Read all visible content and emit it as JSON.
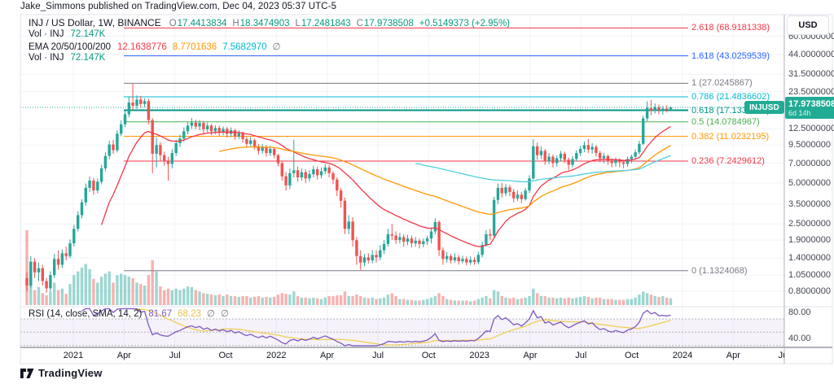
{
  "header": {
    "attribution": "Jake_Simmons published on TradingView.com, Dec 04, 2023 05:37 UTC-5"
  },
  "legend": {
    "symbol_title": "INJ / US Dollar, 1W, BINANCE",
    "ohlc": {
      "o_label": "O",
      "o": "17.4413834",
      "h_label": "H",
      "h": "18.3474903",
      "l_label": "L",
      "l": "17.2481843",
      "c_label": "C",
      "c": "17.9738508",
      "change": "+0.5149373 (+2.95%)"
    },
    "vol_row": {
      "label": "Vol · INJ",
      "value": "72.147K"
    },
    "ema_row": {
      "label": "EMA 20/50/100/200",
      "v1": "12.1638776",
      "v2": "8.7701636",
      "v3": "7.5682970",
      "v4": "∅"
    },
    "vol_row2": {
      "label": "Vol · INJ",
      "value": "72.147K"
    }
  },
  "rsi_legend": {
    "label": "RSI (14, close, SMA, 14, 2)",
    "v1": "81.67",
    "v2": "68.23",
    "v3": "∅",
    "v4": "∅"
  },
  "price_badge": {
    "symbol_label": "INJUSD",
    "price": "17.9738508",
    "countdown": "6d 14h"
  },
  "axis": {
    "currency_button": "USD",
    "price_ticks": [
      {
        "value": 60,
        "label": "60.0000000"
      },
      {
        "value": 44,
        "label": "44.0000000"
      },
      {
        "value": 31.5,
        "label": "31.5000000"
      },
      {
        "value": 23.5,
        "label": "23.5000000"
      },
      {
        "value": 12.5,
        "label": "12.5000000"
      },
      {
        "value": 9.5,
        "label": "9.5000000"
      },
      {
        "value": 7,
        "label": "7.0000000"
      },
      {
        "value": 5,
        "label": "5.0000000"
      },
      {
        "value": 3.5,
        "label": "3.5000000"
      },
      {
        "value": 2.5,
        "label": "2.5000000"
      },
      {
        "value": 1.9,
        "label": "1.9000000"
      },
      {
        "value": 1.4,
        "label": "1.4000000"
      },
      {
        "value": 1.05,
        "label": "1.0500000"
      },
      {
        "value": 0.8,
        "label": "0.8000000"
      }
    ],
    "rsi_ticks": [
      {
        "value": 80,
        "label": "80.00"
      },
      {
        "value": 40,
        "label": "40.00"
      }
    ],
    "time_labels": [
      "2021",
      "Apr",
      "Jul",
      "Oct",
      "2022",
      "Apr",
      "Jul",
      "Oct",
      "2023",
      "Apr",
      "Jul",
      "Oct",
      "2024",
      "Apr",
      "Jul"
    ]
  },
  "fib_levels": [
    {
      "ratio": "2.618",
      "value": 68.9181338,
      "label": "2.618 (68.9181338)",
      "color": "#f23645",
      "width": 1
    },
    {
      "ratio": "1.618",
      "value": 43.0259539,
      "label": "1.618 (43.0259539)",
      "color": "#2962ff",
      "width": 1
    },
    {
      "ratio": "1",
      "value": 27.0245867,
      "label": "1 (27.0245867)",
      "color": "#787b86",
      "width": 1
    },
    {
      "ratio": "0.786",
      "value": 21.4836602,
      "label": "0.786 (21.4836602)",
      "color": "#00bcd4",
      "width": 1
    },
    {
      "ratio": "0.618",
      "value": 17.133774,
      "label": "0.618 (17.1337740)",
      "color": "#009688",
      "width": 2
    },
    {
      "ratio": "0.5",
      "value": 14.0784967,
      "label": "0.5 (14.0784967)",
      "color": "#4caf50",
      "width": 1
    },
    {
      "ratio": "0.382",
      "value": 11.0232195,
      "label": "0.382 (11.0232195)",
      "color": "#ff9800",
      "width": 1
    },
    {
      "ratio": "0.236",
      "value": 7.2429612,
      "label": "0.236 (7.2429612)",
      "color": "#f23645",
      "width": 1
    },
    {
      "ratio": "0",
      "value": 1.1324068,
      "label": "0 (1.1324068)",
      "color": "#787b86",
      "width": 1
    }
  ],
  "footer": {
    "brand": "TradingView"
  },
  "colors": {
    "up": "#26a69a",
    "down": "#ef5350",
    "vol_up": "rgba(38,166,154,0.45)",
    "vol_down": "rgba(239,83,80,0.45)",
    "ema20": "#f23645",
    "ema50": "#ff9800",
    "ema100": "#4dd0e1",
    "rsi_line": "#7e57c2",
    "rsi_sma": "#f0cf55",
    "rsi_band": "rgba(126,87,194,0.08)",
    "grid": "#f0f3fa",
    "accent": "#22ab94",
    "border": "#e0e3eb"
  },
  "chart_data": {
    "type": "candlestick",
    "symbol": "INJ / US Dollar",
    "exchange": "BINANCE",
    "timeframe": "1W",
    "scale": "log",
    "current_price": 17.9738508,
    "last_bar": {
      "open": 17.4413834,
      "high": 18.3474903,
      "low": 17.2481843,
      "close": 17.9738508,
      "change": 0.5149373,
      "change_pct": 2.95,
      "volume_label": "72.147K"
    },
    "visible_price_range": [
      0.8,
      60
    ],
    "rsi_range_labels": [
      80,
      40
    ],
    "indicators": {
      "ema_periods": [
        20,
        50,
        100,
        200
      ],
      "ema_values_shown": [
        12.1638776,
        8.7701636,
        7.568297,
        null
      ],
      "rsi_period": 14,
      "rsi_sma_period": 14,
      "rsi_value_shown": 81.67,
      "rsi_sma_value_shown": 68.23
    },
    "candles": [
      [
        1.0,
        1.1,
        0.8,
        0.88,
        100
      ],
      [
        0.88,
        1.45,
        0.85,
        1.32,
        40
      ],
      [
        1.32,
        1.4,
        1.0,
        1.1,
        20
      ],
      [
        1.1,
        1.3,
        0.95,
        1.18,
        24
      ],
      [
        1.18,
        1.25,
        0.88,
        0.95,
        16
      ],
      [
        0.95,
        1.0,
        0.78,
        0.84,
        13
      ],
      [
        0.84,
        1.12,
        0.8,
        1.05,
        18
      ],
      [
        1.05,
        1.5,
        1.0,
        1.38,
        30
      ],
      [
        1.38,
        1.6,
        1.15,
        1.25,
        20
      ],
      [
        1.25,
        1.62,
        1.18,
        1.52,
        22
      ],
      [
        1.52,
        1.7,
        1.35,
        1.45,
        15
      ],
      [
        1.45,
        1.92,
        1.4,
        1.8,
        28
      ],
      [
        1.8,
        2.45,
        1.7,
        2.3,
        40
      ],
      [
        2.3,
        3.1,
        2.2,
        2.9,
        45
      ],
      [
        2.9,
        3.8,
        2.75,
        3.6,
        50
      ],
      [
        3.6,
        4.95,
        3.4,
        4.6,
        55
      ],
      [
        4.6,
        5.6,
        4.3,
        5.2,
        48
      ],
      [
        5.2,
        5.45,
        4.1,
        4.4,
        35
      ],
      [
        4.4,
        5.4,
        4.2,
        5.1,
        30
      ],
      [
        5.1,
        6.8,
        4.9,
        6.4,
        38
      ],
      [
        6.4,
        8.4,
        6.1,
        7.9,
        42
      ],
      [
        7.9,
        10.2,
        7.5,
        9.6,
        45
      ],
      [
        9.6,
        10.4,
        8.2,
        8.7,
        30
      ],
      [
        8.7,
        12.2,
        8.4,
        11.5,
        40
      ],
      [
        11.5,
        14.4,
        11.0,
        13.5,
        42
      ],
      [
        13.5,
        17.0,
        12.9,
        16.0,
        40
      ],
      [
        16.0,
        21.5,
        15.2,
        19.5,
        38
      ],
      [
        19.5,
        27.0,
        17.0,
        18.5,
        36
      ],
      [
        18.5,
        22.0,
        17.5,
        20.5,
        30
      ],
      [
        20.5,
        21.8,
        17.8,
        19.0,
        28
      ],
      [
        19.0,
        21.0,
        18.0,
        20.0,
        26
      ],
      [
        20.0,
        20.8,
        13.5,
        14.5,
        40
      ],
      [
        14.5,
        15.0,
        5.9,
        8.2,
        60
      ],
      [
        8.2,
        10.8,
        6.5,
        9.5,
        45
      ],
      [
        9.5,
        10.0,
        7.3,
        8.0,
        25
      ],
      [
        8.0,
        8.5,
        6.7,
        7.2,
        20
      ],
      [
        7.2,
        7.8,
        5.2,
        6.9,
        22
      ],
      [
        6.9,
        8.8,
        6.4,
        8.3,
        20
      ],
      [
        8.3,
        10.4,
        7.9,
        9.8,
        22
      ],
      [
        9.8,
        11.3,
        9.2,
        10.6,
        20
      ],
      [
        10.6,
        12.8,
        10.0,
        12.0,
        22
      ],
      [
        12.0,
        14.0,
        11.4,
        13.2,
        25
      ],
      [
        13.2,
        15.0,
        12.5,
        13.9,
        24
      ],
      [
        13.9,
        14.6,
        12.4,
        13.0,
        20
      ],
      [
        13.0,
        14.5,
        12.2,
        13.8,
        18
      ],
      [
        13.8,
        14.3,
        11.6,
        12.4,
        16
      ],
      [
        12.4,
        13.9,
        11.8,
        13.2,
        15
      ],
      [
        13.2,
        13.6,
        11.2,
        12.0,
        14
      ],
      [
        12.0,
        13.3,
        11.4,
        12.7,
        13
      ],
      [
        12.7,
        13.2,
        11.0,
        11.8,
        14
      ],
      [
        11.8,
        13.0,
        11.2,
        12.5,
        12
      ],
      [
        12.5,
        12.9,
        10.8,
        11.5,
        14
      ],
      [
        11.5,
        12.8,
        10.9,
        12.2,
        12
      ],
      [
        12.2,
        12.5,
        10.4,
        11.0,
        12
      ],
      [
        11.0,
        12.2,
        10.5,
        11.6,
        11
      ],
      [
        11.6,
        11.9,
        9.9,
        10.5,
        12
      ],
      [
        10.5,
        10.9,
        9.2,
        9.7,
        12
      ],
      [
        9.7,
        10.9,
        9.3,
        10.3,
        10
      ],
      [
        10.3,
        10.6,
        8.8,
        9.3,
        11
      ],
      [
        9.3,
        9.7,
        8.1,
        8.6,
        12
      ],
      [
        8.6,
        9.7,
        8.2,
        9.2,
        10
      ],
      [
        9.2,
        9.5,
        7.8,
        8.3,
        11
      ],
      [
        8.3,
        9.4,
        7.9,
        8.9,
        10
      ],
      [
        8.9,
        9.1,
        7.6,
        8.0,
        11
      ],
      [
        8.0,
        8.2,
        6.6,
        7.0,
        14
      ],
      [
        7.0,
        7.3,
        5.2,
        5.6,
        16
      ],
      [
        5.6,
        6.0,
        4.4,
        4.8,
        15
      ],
      [
        4.8,
        6.4,
        4.5,
        5.9,
        14
      ],
      [
        5.9,
        10.4,
        5.5,
        6.2,
        18
      ],
      [
        6.2,
        6.6,
        5.1,
        5.5,
        12
      ],
      [
        5.5,
        6.4,
        5.2,
        6.0,
        10
      ],
      [
        6.0,
        6.3,
        5.0,
        5.4,
        10
      ],
      [
        5.4,
        6.2,
        5.1,
        5.8,
        9
      ],
      [
        5.8,
        6.7,
        5.5,
        6.3,
        10
      ],
      [
        6.3,
        6.6,
        5.3,
        5.7,
        9
      ],
      [
        5.7,
        6.5,
        5.4,
        6.1,
        8
      ],
      [
        6.1,
        6.9,
        5.8,
        6.5,
        10
      ],
      [
        6.5,
        6.8,
        5.5,
        5.9,
        12
      ],
      [
        5.9,
        6.1,
        4.9,
        5.3,
        12
      ],
      [
        5.3,
        5.5,
        4.0,
        4.4,
        13
      ],
      [
        4.4,
        4.6,
        3.3,
        3.7,
        13
      ],
      [
        3.7,
        3.9,
        2.1,
        2.3,
        18
      ],
      [
        2.3,
        2.9,
        2.1,
        2.6,
        12
      ],
      [
        2.6,
        2.8,
        1.7,
        1.9,
        12
      ],
      [
        1.9,
        2.0,
        1.25,
        1.45,
        14
      ],
      [
        1.45,
        1.6,
        1.15,
        1.3,
        12
      ],
      [
        1.3,
        1.5,
        1.22,
        1.42,
        10
      ],
      [
        1.42,
        1.52,
        1.28,
        1.35,
        9
      ],
      [
        1.35,
        1.6,
        1.28,
        1.48,
        10
      ],
      [
        1.48,
        1.6,
        1.3,
        1.42,
        8
      ],
      [
        1.42,
        1.75,
        1.35,
        1.6,
        9
      ],
      [
        1.6,
        1.9,
        1.5,
        1.78,
        10
      ],
      [
        1.78,
        2.3,
        1.7,
        2.1,
        14
      ],
      [
        2.1,
        2.5,
        1.9,
        2.05,
        16
      ],
      [
        2.05,
        2.2,
        1.78,
        1.9,
        12
      ],
      [
        1.9,
        2.15,
        1.8,
        2.0,
        8
      ],
      [
        2.0,
        2.1,
        1.7,
        1.85,
        8
      ],
      [
        1.85,
        2.08,
        1.75,
        1.95,
        7
      ],
      [
        1.95,
        2.05,
        1.68,
        1.8,
        7
      ],
      [
        1.8,
        2.0,
        1.7,
        1.88,
        6
      ],
      [
        1.88,
        1.95,
        1.65,
        1.78,
        6
      ],
      [
        1.78,
        1.95,
        1.68,
        1.86,
        7
      ],
      [
        1.86,
        2.05,
        1.75,
        1.95,
        8
      ],
      [
        1.95,
        2.35,
        1.8,
        2.2,
        10
      ],
      [
        2.2,
        2.75,
        2.1,
        2.58,
        12
      ],
      [
        2.58,
        2.65,
        1.45,
        1.6,
        16
      ],
      [
        1.6,
        1.68,
        1.25,
        1.38,
        12
      ],
      [
        1.38,
        1.55,
        1.3,
        1.45,
        8
      ],
      [
        1.45,
        1.5,
        1.28,
        1.35,
        7
      ],
      [
        1.35,
        1.52,
        1.3,
        1.42,
        6
      ],
      [
        1.42,
        1.48,
        1.26,
        1.33,
        6
      ],
      [
        1.33,
        1.46,
        1.28,
        1.38,
        6
      ],
      [
        1.38,
        1.44,
        1.24,
        1.3,
        6
      ],
      [
        1.3,
        1.44,
        1.25,
        1.36,
        5
      ],
      [
        1.36,
        1.42,
        1.25,
        1.31,
        6
      ],
      [
        1.31,
        1.56,
        1.26,
        1.48,
        8
      ],
      [
        1.48,
        1.85,
        1.42,
        1.75,
        10
      ],
      [
        1.75,
        2.25,
        1.7,
        2.1,
        12
      ],
      [
        2.1,
        2.3,
        1.9,
        2.05,
        9
      ],
      [
        2.05,
        3.95,
        2.0,
        3.75,
        20
      ],
      [
        3.75,
        4.95,
        3.5,
        4.6,
        18
      ],
      [
        4.6,
        5.0,
        3.9,
        4.2,
        12
      ],
      [
        4.2,
        4.9,
        4.0,
        4.65,
        10
      ],
      [
        4.65,
        4.85,
        4.0,
        4.3,
        9
      ],
      [
        4.3,
        4.5,
        3.6,
        3.85,
        10
      ],
      [
        3.85,
        4.4,
        3.7,
        4.1,
        8
      ],
      [
        4.1,
        4.3,
        3.55,
        3.8,
        9
      ],
      [
        3.8,
        4.6,
        3.7,
        4.4,
        10
      ],
      [
        4.4,
        5.7,
        4.2,
        5.4,
        12
      ],
      [
        5.4,
        10.5,
        5.3,
        9.3,
        22
      ],
      [
        9.3,
        9.9,
        7.4,
        8.0,
        16
      ],
      [
        8.0,
        9.3,
        7.5,
        8.6,
        12
      ],
      [
        8.6,
        8.9,
        6.8,
        7.2,
        12
      ],
      [
        7.2,
        8.3,
        6.9,
        7.8,
        10
      ],
      [
        7.8,
        8.1,
        6.5,
        7.0,
        10
      ],
      [
        7.0,
        8.0,
        6.6,
        7.6,
        9
      ],
      [
        7.6,
        8.6,
        7.2,
        8.2,
        10
      ],
      [
        8.2,
        8.5,
        7.0,
        7.4,
        9
      ],
      [
        7.4,
        7.7,
        6.2,
        6.8,
        10
      ],
      [
        6.8,
        7.9,
        6.5,
        7.5,
        9
      ],
      [
        7.5,
        8.7,
        7.2,
        8.3,
        10
      ],
      [
        8.3,
        9.4,
        7.9,
        8.9,
        11
      ],
      [
        8.9,
        10.1,
        8.4,
        9.5,
        12
      ],
      [
        9.5,
        10.5,
        8.3,
        8.8,
        11
      ],
      [
        8.8,
        9.8,
        8.2,
        9.2,
        9
      ],
      [
        9.2,
        9.5,
        7.8,
        8.3,
        10
      ],
      [
        8.3,
        8.6,
        7.1,
        7.6,
        10
      ],
      [
        7.6,
        8.3,
        7.0,
        7.9,
        8
      ],
      [
        7.9,
        8.1,
        6.8,
        7.3,
        8
      ],
      [
        7.3,
        7.6,
        6.5,
        7.0,
        8
      ],
      [
        7.0,
        7.7,
        6.6,
        7.4,
        7
      ],
      [
        7.4,
        7.6,
        6.5,
        7.1,
        7
      ],
      [
        7.1,
        7.4,
        6.4,
        6.9,
        7
      ],
      [
        6.9,
        7.8,
        6.6,
        7.5,
        8
      ],
      [
        7.5,
        8.1,
        7.0,
        7.8,
        8
      ],
      [
        7.8,
        8.8,
        7.5,
        8.4,
        10
      ],
      [
        8.4,
        10.2,
        8.1,
        9.7,
        14
      ],
      [
        9.7,
        15.6,
        9.5,
        14.9,
        18
      ],
      [
        14.9,
        19.9,
        14.2,
        17.8,
        16
      ],
      [
        17.8,
        20.4,
        15.8,
        16.9,
        14
      ],
      [
        16.9,
        19.2,
        16.2,
        18.1,
        12
      ],
      [
        18.1,
        18.9,
        16.0,
        17.2,
        11
      ],
      [
        17.2,
        18.4,
        15.9,
        17.6,
        12
      ],
      [
        17.6,
        18.6,
        16.5,
        17.44,
        10
      ],
      [
        17.4413834,
        18.3474903,
        17.2481843,
        17.9738508,
        9
      ]
    ]
  }
}
